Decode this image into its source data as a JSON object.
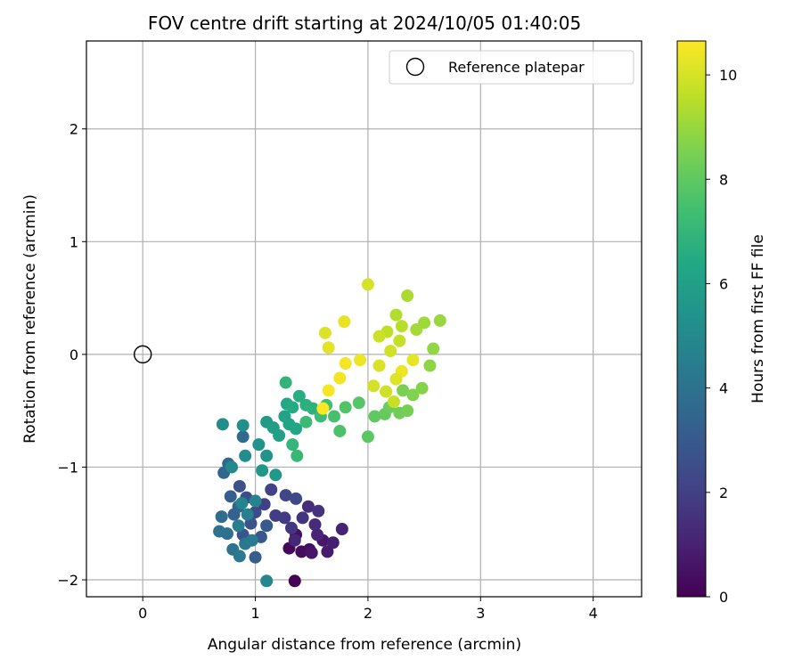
{
  "chart_data": {
    "type": "scatter",
    "title": "FOV centre drift starting at 2024/10/05 01:40:05",
    "xlabel": "Angular distance from reference (arcmin)",
    "ylabel": "Rotation from reference (arcmin)",
    "xlim": [
      -0.5,
      4.43
    ],
    "ylim": [
      -2.15,
      2.78
    ],
    "xticks": [
      0,
      1,
      2,
      3,
      4
    ],
    "yticks": [
      -2,
      -1,
      0,
      1,
      2
    ],
    "xtick_labels": [
      "0",
      "1",
      "2",
      "3",
      "4"
    ],
    "ytick_labels": [
      "−2",
      "−1",
      "0",
      "1",
      "2"
    ],
    "grid": true,
    "legend": {
      "position": "top-right",
      "entries": [
        "Reference platepar"
      ]
    },
    "reference_point": {
      "name": "Reference platepar",
      "x": 0,
      "y": 0
    },
    "colorbar": {
      "label": "Hours from first FF file",
      "colormap": "viridis",
      "range": [
        0,
        10.65
      ],
      "ticks": [
        0,
        2,
        4,
        6,
        8,
        10
      ]
    },
    "points": [
      [
        1.35,
        -2.01,
        0.05
      ],
      [
        1.3,
        -1.72,
        0.2
      ],
      [
        1.41,
        -1.75,
        0.3
      ],
      [
        1.48,
        -1.73,
        0.4
      ],
      [
        1.36,
        -1.6,
        0.5
      ],
      [
        1.5,
        -1.76,
        0.6
      ],
      [
        1.6,
        -1.65,
        0.7
      ],
      [
        1.64,
        -1.75,
        0.8
      ],
      [
        1.69,
        -1.67,
        0.9
      ],
      [
        1.77,
        -1.55,
        1.0
      ],
      [
        1.55,
        -1.6,
        1.1
      ],
      [
        1.35,
        -1.65,
        1.2
      ],
      [
        1.53,
        -1.51,
        1.3
      ],
      [
        1.47,
        -1.35,
        1.4
      ],
      [
        1.56,
        -1.39,
        1.5
      ],
      [
        1.42,
        -1.45,
        1.6
      ],
      [
        1.32,
        -1.54,
        1.7
      ],
      [
        1.26,
        -1.45,
        1.8
      ],
      [
        1.18,
        -1.43,
        1.9
      ],
      [
        1.08,
        -1.33,
        2.0
      ],
      [
        1.14,
        -1.2,
        2.1
      ],
      [
        1.27,
        -1.25,
        2.2
      ],
      [
        1.36,
        -1.28,
        2.3
      ],
      [
        1.0,
        -1.4,
        2.4
      ],
      [
        0.92,
        -1.27,
        2.5
      ],
      [
        0.86,
        -1.17,
        2.6
      ],
      [
        0.96,
        -1.5,
        2.7
      ],
      [
        0.89,
        -1.6,
        2.8
      ],
      [
        1.05,
        -1.62,
        2.9
      ],
      [
        1.1,
        -1.52,
        3.0
      ],
      [
        1.0,
        -1.8,
        3.1
      ],
      [
        0.78,
        -1.26,
        3.2
      ],
      [
        0.81,
        -1.42,
        3.3
      ],
      [
        0.85,
        -1.35,
        3.4
      ],
      [
        0.72,
        -1.05,
        3.5
      ],
      [
        0.76,
        -0.97,
        3.6
      ],
      [
        0.89,
        -0.73,
        3.7
      ],
      [
        0.7,
        -1.44,
        3.8
      ],
      [
        0.75,
        -1.59,
        3.9
      ],
      [
        0.68,
        -1.57,
        4.0
      ],
      [
        0.8,
        -1.73,
        4.1
      ],
      [
        0.91,
        -1.68,
        4.2
      ],
      [
        0.86,
        -1.79,
        4.3
      ],
      [
        0.97,
        -1.65,
        4.4
      ],
      [
        0.85,
        -1.52,
        4.5
      ],
      [
        0.93,
        -1.42,
        4.6
      ],
      [
        1.0,
        -1.3,
        4.7
      ],
      [
        0.88,
        -1.32,
        4.8
      ],
      [
        1.1,
        -2.01,
        4.9
      ],
      [
        0.79,
        -1.0,
        5.0
      ],
      [
        0.91,
        -0.9,
        5.1
      ],
      [
        0.71,
        -0.62,
        5.2
      ],
      [
        0.89,
        -0.63,
        5.3
      ],
      [
        1.03,
        -0.8,
        5.4
      ],
      [
        1.1,
        -0.9,
        5.5
      ],
      [
        1.06,
        -1.03,
        5.6
      ],
      [
        1.18,
        -1.07,
        5.7
      ],
      [
        1.1,
        -0.6,
        5.8
      ],
      [
        1.16,
        -0.65,
        5.9
      ],
      [
        1.21,
        -0.72,
        6.0
      ],
      [
        1.26,
        -0.55,
        6.1
      ],
      [
        1.3,
        -0.62,
        6.2
      ],
      [
        1.36,
        -0.66,
        6.3
      ],
      [
        1.28,
        -0.44,
        6.4
      ],
      [
        1.33,
        -0.47,
        6.5
      ],
      [
        1.39,
        -0.37,
        6.6
      ],
      [
        1.45,
        -0.45,
        6.7
      ],
      [
        1.51,
        -0.48,
        6.8
      ],
      [
        1.27,
        -0.25,
        6.9
      ],
      [
        1.33,
        -0.8,
        7.0
      ],
      [
        1.37,
        -0.9,
        7.1
      ],
      [
        1.45,
        -0.6,
        7.2
      ],
      [
        1.58,
        -0.55,
        7.3
      ],
      [
        1.63,
        -0.45,
        7.4
      ],
      [
        1.7,
        -0.55,
        7.5
      ],
      [
        1.75,
        -0.68,
        7.6
      ],
      [
        1.8,
        -0.47,
        7.7
      ],
      [
        1.92,
        -0.43,
        7.8
      ],
      [
        2.0,
        -0.73,
        7.9
      ],
      [
        2.06,
        -0.55,
        8.0
      ],
      [
        2.15,
        -0.53,
        8.1
      ],
      [
        2.19,
        -0.47,
        8.2
      ],
      [
        2.28,
        -0.52,
        8.3
      ],
      [
        2.35,
        -0.5,
        8.4
      ],
      [
        2.31,
        -0.32,
        8.5
      ],
      [
        2.4,
        -0.36,
        8.6
      ],
      [
        2.48,
        -0.3,
        8.7
      ],
      [
        2.55,
        -0.1,
        8.8
      ],
      [
        2.58,
        0.05,
        8.9
      ],
      [
        2.64,
        0.3,
        9.0
      ],
      [
        2.5,
        0.28,
        9.1
      ],
      [
        2.43,
        0.22,
        9.2
      ],
      [
        2.35,
        0.52,
        9.3
      ],
      [
        2.25,
        0.35,
        9.4
      ],
      [
        2.3,
        0.25,
        9.5
      ],
      [
        2.17,
        0.2,
        9.6
      ],
      [
        2.28,
        0.12,
        9.7
      ],
      [
        2.1,
        0.16,
        9.8
      ],
      [
        2.2,
        0.03,
        9.9
      ],
      [
        2.0,
        0.62,
        10.0
      ],
      [
        1.62,
        0.19,
        10.1
      ],
      [
        1.65,
        0.06,
        10.2
      ],
      [
        1.79,
        0.29,
        10.3
      ],
      [
        1.93,
        -0.05,
        10.4
      ],
      [
        1.75,
        -0.21,
        10.45
      ],
      [
        1.8,
        -0.08,
        10.5
      ],
      [
        1.6,
        -0.48,
        10.6
      ],
      [
        1.65,
        -0.32,
        10.55
      ],
      [
        2.3,
        -0.15,
        10.35
      ],
      [
        2.4,
        -0.05,
        10.25
      ],
      [
        2.25,
        -0.22,
        10.15
      ],
      [
        2.1,
        -0.1,
        10.05
      ],
      [
        2.05,
        -0.28,
        9.95
      ],
      [
        2.16,
        -0.33,
        9.85
      ],
      [
        2.23,
        -0.42,
        9.75
      ]
    ]
  }
}
